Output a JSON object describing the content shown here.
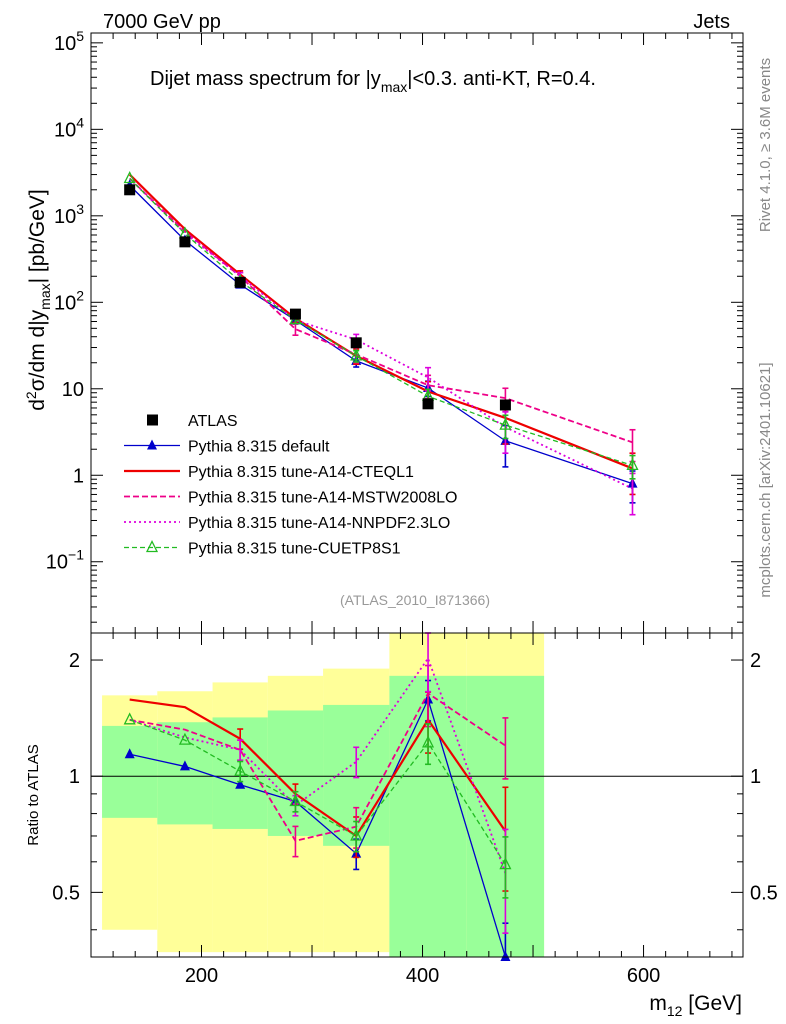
{
  "header": {
    "left": "7000 GeV pp",
    "right": "Jets"
  },
  "side_labels": {
    "top": "Rivet 4.1.0, ≥ 3.6M events",
    "bottom": "mcplots.cern.ch [arXiv:2401.10621]"
  },
  "analysis_id": "(ATLAS_2010_I871366)",
  "title": {
    "part1": "Dijet mass spectrum for |y",
    "sub": "max",
    "part2": "|<0.3.  anti-KT, R=0.4."
  },
  "ylabel": {
    "a": "d",
    "sup2": "2",
    "b": "σ/dm d|y",
    "sub": "max",
    "c": "| [pb/GeV]"
  },
  "ratio_ylabel": "Ratio to ATLAS",
  "xlabel": {
    "a": "m",
    "sub": "12",
    "b": " [GeV]"
  },
  "main_ticks": {
    "y": [
      {
        "value": 0.1,
        "base": "10",
        "exp": "−1"
      },
      {
        "value": 1,
        "label": "1"
      },
      {
        "value": 10,
        "label": "10"
      },
      {
        "value": 100,
        "base": "10",
        "exp": "2"
      },
      {
        "value": 1000,
        "base": "10",
        "exp": "3"
      },
      {
        "value": 10000,
        "base": "10",
        "exp": "4"
      },
      {
        "value": 100000,
        "base": "10",
        "exp": "5"
      }
    ]
  },
  "ratio_ticks": {
    "y": [
      {
        "value": 0.5,
        "label": "0.5"
      },
      {
        "value": 1,
        "label": "1"
      },
      {
        "value": 2,
        "label": "2"
      }
    ]
  },
  "x_ticks": [
    {
      "value": 200,
      "label": "200"
    },
    {
      "value": 400,
      "label": "400"
    },
    {
      "value": 600,
      "label": "600"
    }
  ],
  "chart_data": {
    "type": "line",
    "xlim": [
      100,
      690
    ],
    "ylim": [
      0.015,
      130000
    ],
    "ratio_ylim": [
      0.34,
      2.35
    ],
    "x": [
      135,
      185,
      235,
      285,
      340,
      405,
      475,
      590
    ],
    "x_edges": [
      [
        110,
        160
      ],
      [
        160,
        210
      ],
      [
        210,
        260
      ],
      [
        260,
        310
      ],
      [
        310,
        370
      ],
      [
        370,
        440
      ],
      [
        440,
        510
      ],
      [
        510,
        670
      ]
    ],
    "legend": [
      "ATLAS",
      "Pythia 8.315 default",
      "Pythia 8.315 tune-A14-CTEQL1",
      "Pythia 8.315 tune-A14-MSTW2008LO",
      "Pythia 8.315 tune-A14-NNPDF2.3LO",
      "Pythia 8.315 tune-CUETP8S1"
    ],
    "atlas": {
      "name": "ATLAS",
      "x": [
        135,
        185,
        235,
        285,
        340,
        405,
        475
      ],
      "values": [
        2000,
        500,
        170,
        73,
        34,
        6.7,
        6.5
      ]
    },
    "series": [
      {
        "name": "Pythia 8.315 default",
        "color": "#0000cc",
        "values": [
          2250,
          520,
          160,
          62,
          21,
          10.2,
          2.5,
          0.8
        ],
        "errors": [
          0,
          0,
          0,
          0,
          0.15,
          0.2,
          0.5,
          0.4
        ]
      },
      {
        "name": "Pythia 8.315 tune-A14-CTEQL1",
        "color": "#ee0000",
        "values": [
          3000,
          700,
          210,
          65,
          24,
          9.3,
          4.6,
          1.2
        ],
        "errors": [
          0,
          0,
          0.1,
          0.1,
          0.2,
          0.3,
          0.5,
          0.5
        ]
      },
      {
        "name": "Pythia 8.315 tune-A14-MSTW2008LO",
        "color": "#ee0088",
        "values": [
          2700,
          660,
          200,
          49,
          25,
          11,
          7.8,
          2.4
        ],
        "errors": [
          0,
          0,
          0.1,
          0.15,
          0.2,
          0.3,
          0.3,
          0.4
        ]
      },
      {
        "name": "Pythia 8.315 tune-A14-NNPDF2.3LO",
        "color": "#dd00dd",
        "values": [
          2700,
          630,
          200,
          62,
          37,
          13.5,
          3.6,
          0.7
        ],
        "errors": [
          0,
          0,
          0.1,
          0.1,
          0.15,
          0.3,
          0.5,
          0.5
        ]
      },
      {
        "name": "Pythia 8.315 tune-CUETP8S1",
        "color": "#22bb22",
        "values": [
          2700,
          620,
          175,
          63,
          24,
          8.2,
          3.8,
          1.3
        ],
        "errors": [
          0,
          0,
          0.1,
          0.1,
          0.15,
          0.2,
          0.3,
          0.3
        ]
      }
    ],
    "ratio": {
      "band_inner": [
        [
          0.78,
          1.35
        ],
        [
          0.75,
          1.38
        ],
        [
          0.73,
          1.42
        ],
        [
          0.7,
          1.48
        ],
        [
          0.66,
          1.53
        ],
        [
          0.3,
          1.82
        ],
        [
          0.3,
          1.82
        ]
      ],
      "band_outer": [
        [
          0.4,
          1.62
        ],
        [
          0.35,
          1.66
        ],
        [
          0.35,
          1.75
        ],
        [
          0.35,
          1.82
        ],
        [
          0.35,
          1.9
        ],
        [
          0.3,
          2.4
        ],
        [
          0.3,
          2.4
        ]
      ],
      "series": [
        {
          "name": "Pythia 8.315 default",
          "values": [
            1.14,
            1.06,
            0.95,
            0.86,
            0.63,
            1.58,
            0.32,
            null
          ]
        },
        {
          "name": "Pythia 8.315 tune-A14-CTEQL1",
          "values": [
            1.58,
            1.51,
            1.25,
            0.9,
            0.7,
            1.4,
            0.72,
            null
          ]
        },
        {
          "name": "Pythia 8.315 tune-A14-MSTW2008LO",
          "values": [
            1.4,
            1.32,
            1.17,
            0.68,
            0.74,
            1.64,
            1.2,
            null
          ]
        },
        {
          "name": "Pythia 8.315 tune-A14-NNPDF2.3LO",
          "values": [
            1.4,
            1.26,
            1.17,
            0.84,
            1.09,
            2.02,
            0.56,
            null
          ]
        },
        {
          "name": "Pythia 8.315 tune-CUETP8S1",
          "values": [
            1.4,
            1.24,
            1.03,
            0.86,
            0.7,
            1.22,
            0.59,
            null
          ]
        }
      ]
    }
  }
}
